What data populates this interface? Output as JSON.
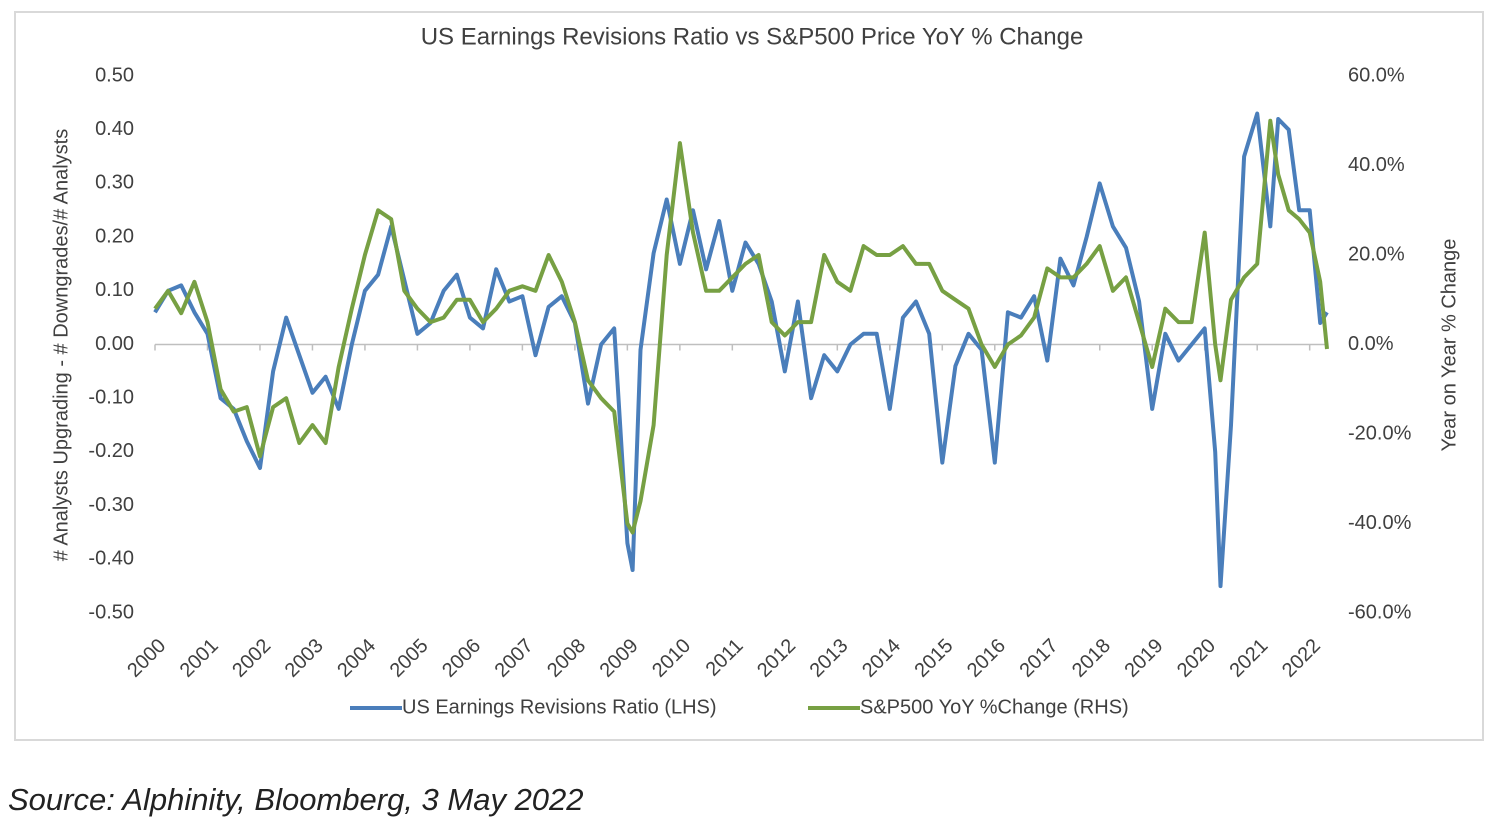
{
  "chart_data": {
    "type": "line",
    "title": "US Earnings Revisions Ratio vs S&P500 Price YoY % Change",
    "y_label": "# Analysts Upgrading - # Downgrades/# Analysts",
    "y2_label": "Year on Year % Change",
    "x": [
      2000.0,
      2000.25,
      2000.5,
      2000.75,
      2001.0,
      2001.25,
      2001.5,
      2001.75,
      2002.0,
      2002.25,
      2002.5,
      2002.75,
      2003.0,
      2003.25,
      2003.5,
      2003.75,
      2004.0,
      2004.25,
      2004.5,
      2004.75,
      2005.0,
      2005.25,
      2005.5,
      2005.75,
      2006.0,
      2006.25,
      2006.5,
      2006.75,
      2007.0,
      2007.25,
      2007.5,
      2007.75,
      2008.0,
      2008.25,
      2008.5,
      2008.75,
      2009.0,
      2009.1,
      2009.25,
      2009.5,
      2009.75,
      2010.0,
      2010.25,
      2010.5,
      2010.75,
      2011.0,
      2011.25,
      2011.5,
      2011.75,
      2012.0,
      2012.25,
      2012.5,
      2012.75,
      2013.0,
      2013.25,
      2013.5,
      2013.75,
      2014.0,
      2014.25,
      2014.5,
      2014.75,
      2015.0,
      2015.25,
      2015.5,
      2015.75,
      2016.0,
      2016.25,
      2016.5,
      2016.75,
      2017.0,
      2017.25,
      2017.5,
      2017.75,
      2018.0,
      2018.25,
      2018.5,
      2018.75,
      2019.0,
      2019.25,
      2019.5,
      2019.75,
      2020.0,
      2020.2,
      2020.3,
      2020.5,
      2020.75,
      2021.0,
      2021.25,
      2021.4,
      2021.6,
      2021.8,
      2022.0,
      2022.2,
      2022.33
    ],
    "xlim": [
      2000,
      2022.33
    ],
    "xticks": [
      2000,
      2001,
      2002,
      2003,
      2004,
      2005,
      2006,
      2007,
      2008,
      2009,
      2010,
      2011,
      2012,
      2013,
      2014,
      2015,
      2016,
      2017,
      2018,
      2019,
      2020,
      2021,
      2022
    ],
    "ylim": [
      -0.5,
      0.5
    ],
    "yticks": [
      {
        "value": 0.5,
        "label": "0.50"
      },
      {
        "value": 0.4,
        "label": "0.40"
      },
      {
        "value": 0.3,
        "label": "0.30"
      },
      {
        "value": 0.2,
        "label": "0.20"
      },
      {
        "value": 0.1,
        "label": "0.10"
      },
      {
        "value": 0,
        "label": "0.00"
      },
      {
        "value": -0.1,
        "label": "-0.10"
      },
      {
        "value": -0.2,
        "label": "-0.20"
      },
      {
        "value": -0.3,
        "label": "-0.30"
      },
      {
        "value": -0.4,
        "label": "-0.40"
      },
      {
        "value": -0.5,
        "label": "-0.50"
      }
    ],
    "y2lim": [
      -60,
      60
    ],
    "y2ticks": [
      {
        "value": 60,
        "label": "60.0%"
      },
      {
        "value": 40,
        "label": "40.0%"
      },
      {
        "value": 20,
        "label": "20.0%"
      },
      {
        "value": 0,
        "label": "0.0%"
      },
      {
        "value": -20,
        "label": "-20.0%"
      },
      {
        "value": -40,
        "label": "-40.0%"
      },
      {
        "value": -60,
        "label": "-60.0%"
      }
    ],
    "legend": "bottom",
    "series": [
      {
        "name": "US Earnings Revisions Ratio (LHS)",
        "color": "#4a7ebb",
        "axis": "y",
        "values": [
          0.06,
          0.1,
          0.11,
          0.06,
          0.02,
          -0.1,
          -0.12,
          -0.18,
          -0.23,
          -0.05,
          0.05,
          -0.02,
          -0.09,
          -0.06,
          -0.12,
          0.0,
          0.1,
          0.13,
          0.22,
          0.12,
          0.02,
          0.04,
          0.1,
          0.13,
          0.05,
          0.03,
          0.14,
          0.08,
          0.09,
          -0.02,
          0.07,
          0.09,
          0.04,
          -0.11,
          0.0,
          0.03,
          -0.37,
          -0.42,
          -0.01,
          0.17,
          0.27,
          0.15,
          0.25,
          0.14,
          0.23,
          0.1,
          0.19,
          0.15,
          0.08,
          -0.05,
          0.08,
          -0.1,
          -0.02,
          -0.05,
          0.0,
          0.02,
          0.02,
          -0.12,
          0.05,
          0.08,
          0.02,
          -0.22,
          -0.04,
          0.02,
          -0.01,
          -0.22,
          0.06,
          0.05,
          0.09,
          -0.03,
          0.16,
          0.11,
          0.2,
          0.3,
          0.22,
          0.18,
          0.08,
          -0.12,
          0.02,
          -0.03,
          0.0,
          0.03,
          -0.2,
          -0.45,
          -0.15,
          0.35,
          0.43,
          0.22,
          0.42,
          0.4,
          0.25,
          0.25,
          0.04,
          0.06
        ]
      },
      {
        "name": "S&P500 YoY %Change (RHS)",
        "color": "#77a043",
        "axis": "y2",
        "values": [
          8,
          12,
          7,
          14,
          5,
          -10,
          -15,
          -14,
          -25,
          -14,
          -12,
          -22,
          -18,
          -22,
          -5,
          8,
          20,
          30,
          28,
          12,
          8,
          5,
          6,
          10,
          10,
          5,
          8,
          12,
          13,
          12,
          20,
          14,
          5,
          -8,
          -12,
          -15,
          -40,
          -42,
          -35,
          -18,
          20,
          45,
          25,
          12,
          12,
          15,
          18,
          20,
          5,
          2,
          5,
          5,
          20,
          14,
          12,
          22,
          20,
          20,
          22,
          18,
          18,
          12,
          10,
          8,
          0,
          -5,
          0,
          2,
          6,
          17,
          15,
          15,
          18,
          22,
          12,
          15,
          5,
          -5,
          8,
          5,
          5,
          25,
          0,
          -8,
          10,
          15,
          18,
          50,
          38,
          30,
          28,
          25,
          14,
          -1
        ]
      }
    ]
  },
  "source": "Source:  Alphinity, Bloomberg, 3 May 2022"
}
